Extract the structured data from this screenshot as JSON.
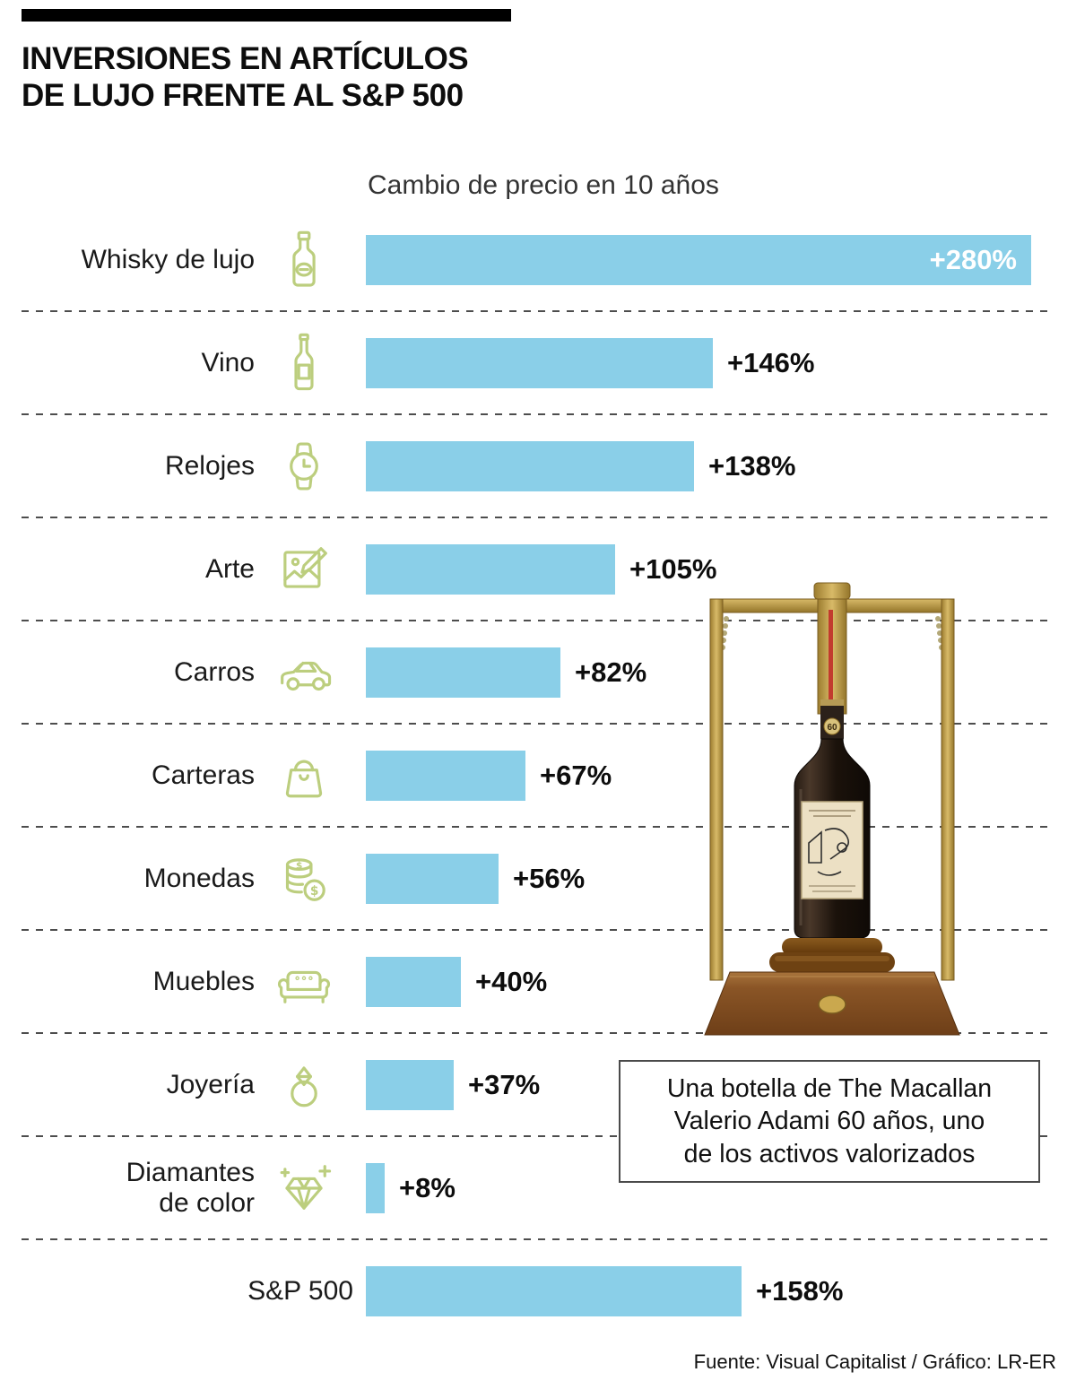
{
  "header": {
    "title_lines": [
      "INVERSIONES EN ARTÍCULOS",
      "DE LUJO FRENTE AL S&P 500"
    ]
  },
  "chart_data": {
    "type": "bar",
    "orientation": "horizontal",
    "subtitle": "Cambio de precio en 10 años",
    "value_unit": "percent price change over 10 years",
    "bar_color": "#8ACFE8",
    "icon_color": "#BCCE7E",
    "xlim": [
      0,
      295
    ],
    "grid": "dashed-row-dividers",
    "categories": [
      "Whisky de lujo",
      "Vino",
      "Relojes",
      "Arte",
      "Carros",
      "Carteras",
      "Monedas",
      "Muebles",
      "Joyería",
      "Diamantes de color",
      "S&P 500"
    ],
    "values": [
      280,
      146,
      138,
      105,
      82,
      67,
      56,
      40,
      37,
      8,
      158
    ],
    "rows": [
      {
        "label": "Whisky de lujo",
        "value": 280,
        "display": "+280%",
        "icon": "whisky-bottle-icon"
      },
      {
        "label": "Vino",
        "value": 146,
        "display": "+146%",
        "icon": "wine-bottle-icon"
      },
      {
        "label": "Relojes",
        "value": 138,
        "display": "+138%",
        "icon": "wristwatch-icon"
      },
      {
        "label": "Arte",
        "value": 105,
        "display": "+105%",
        "icon": "art-picture-icon"
      },
      {
        "label": "Carros",
        "value": 82,
        "display": "+82%",
        "icon": "car-icon"
      },
      {
        "label": "Carteras",
        "value": 67,
        "display": "+67%",
        "icon": "handbag-icon"
      },
      {
        "label": "Monedas",
        "value": 56,
        "display": "+56%",
        "icon": "coins-icon"
      },
      {
        "label": "Muebles",
        "value": 40,
        "display": "+40%",
        "icon": "sofa-icon"
      },
      {
        "label": "Joyería",
        "value": 37,
        "display": "+37%",
        "icon": "ring-icon"
      },
      {
        "label": "Diamantes de color",
        "value": 8,
        "display": "+8%",
        "icon": "diamond-icon"
      },
      {
        "label": "S&P 500",
        "value": 158,
        "display": "+158%",
        "icon": null
      }
    ]
  },
  "figure": {
    "bottle_badge": "60",
    "caption_lines": [
      "Una botella de The Macallan",
      "Valerio Adami 60 años, uno",
      "de los activos valorizados"
    ]
  },
  "footer": {
    "source": "Fuente: Visual Capitalist / Gráfico: LR-ER"
  }
}
